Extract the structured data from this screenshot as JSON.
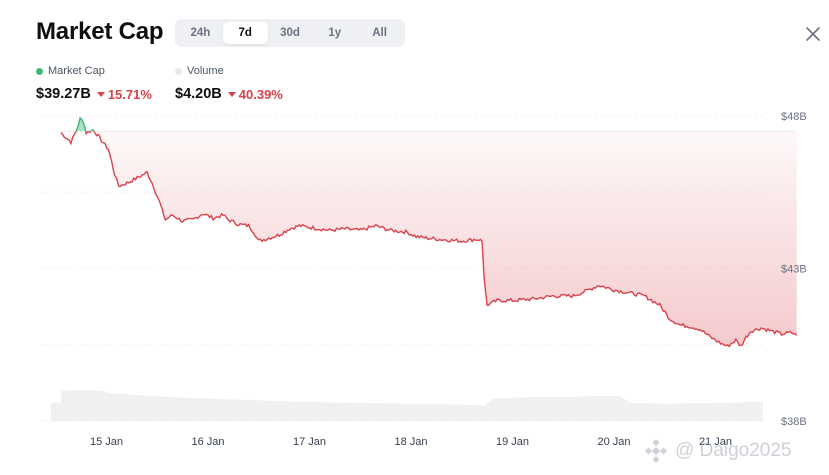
{
  "header": {
    "title": "Market Cap",
    "tabs": [
      {
        "label": "24h",
        "active": false
      },
      {
        "label": "7d",
        "active": true
      },
      {
        "label": "30d",
        "active": false
      },
      {
        "label": "1y",
        "active": false
      },
      {
        "label": "All",
        "active": false
      }
    ],
    "close_icon": "close-icon"
  },
  "legend": {
    "market_cap": {
      "label": "Market Cap",
      "value": "$39.27B",
      "change": "15.71%",
      "direction": "down",
      "color": "#3fb67a"
    },
    "volume": {
      "label": "Volume",
      "value": "$4.20B",
      "change": "40.39%",
      "direction": "down",
      "color": "#e5e7eb"
    }
  },
  "colors": {
    "down": "#d9414b",
    "up": "#3fb67a",
    "volume_bars": "#ebedf0"
  },
  "watermark": {
    "text": "@ Daigo2025"
  },
  "chart_data": {
    "type": "line",
    "y_unit": "B",
    "ylim": [
      38,
      48
    ],
    "y_ticks": [
      "$48B",
      "$43B",
      "$38B"
    ],
    "x_ticks": [
      "15 Jan",
      "16 Jan",
      "17 Jan",
      "18 Jan",
      "19 Jan",
      "20 Jan",
      "21 Jan"
    ],
    "grid": true,
    "baseline": 47.5,
    "series": [
      {
        "values": [
          [
            14.55,
            47.45
          ],
          [
            14.65,
            47.15
          ],
          [
            14.7,
            47.5
          ],
          [
            14.74,
            47.9
          ],
          [
            14.77,
            47.85
          ],
          [
            14.8,
            47.45
          ],
          [
            14.87,
            47.55
          ],
          [
            14.95,
            47.2
          ],
          [
            15.02,
            46.9
          ],
          [
            15.08,
            46.1
          ],
          [
            15.12,
            45.7
          ],
          [
            15.2,
            45.8
          ],
          [
            15.32,
            46.0
          ],
          [
            15.4,
            46.15
          ],
          [
            15.45,
            45.8
          ],
          [
            15.52,
            45.2
          ],
          [
            15.58,
            44.6
          ],
          [
            15.65,
            44.75
          ],
          [
            15.75,
            44.55
          ],
          [
            15.85,
            44.6
          ],
          [
            15.95,
            44.8
          ],
          [
            16.05,
            44.65
          ],
          [
            16.15,
            44.75
          ],
          [
            16.2,
            44.6
          ],
          [
            16.3,
            44.45
          ],
          [
            16.4,
            44.4
          ],
          [
            16.45,
            44.2
          ],
          [
            16.5,
            43.9
          ],
          [
            16.6,
            44.0
          ],
          [
            16.7,
            44.1
          ],
          [
            16.8,
            44.3
          ],
          [
            16.9,
            44.4
          ],
          [
            17.0,
            44.35
          ],
          [
            17.1,
            44.3
          ],
          [
            17.2,
            44.25
          ],
          [
            17.35,
            44.3
          ],
          [
            17.5,
            44.25
          ],
          [
            17.65,
            44.4
          ],
          [
            17.8,
            44.25
          ],
          [
            17.95,
            44.2
          ],
          [
            18.05,
            44.05
          ],
          [
            18.15,
            44.0
          ],
          [
            18.3,
            43.95
          ],
          [
            18.5,
            43.9
          ],
          [
            18.62,
            43.95
          ],
          [
            18.67,
            43.95
          ],
          [
            18.7,
            43.9
          ],
          [
            18.72,
            42.7
          ],
          [
            18.75,
            41.8
          ],
          [
            18.85,
            41.95
          ],
          [
            19.0,
            41.95
          ],
          [
            19.2,
            42.0
          ],
          [
            19.4,
            42.1
          ],
          [
            19.6,
            42.1
          ],
          [
            19.75,
            42.3
          ],
          [
            19.85,
            42.45
          ],
          [
            20.0,
            42.3
          ],
          [
            20.15,
            42.2
          ],
          [
            20.3,
            42.1
          ],
          [
            20.45,
            41.8
          ],
          [
            20.55,
            41.35
          ],
          [
            20.65,
            41.15
          ],
          [
            20.75,
            41.1
          ],
          [
            20.85,
            41.0
          ],
          [
            20.95,
            40.75
          ],
          [
            21.05,
            40.55
          ],
          [
            21.12,
            40.45
          ],
          [
            21.2,
            40.65
          ],
          [
            21.25,
            40.45
          ],
          [
            21.3,
            40.75
          ],
          [
            21.35,
            40.95
          ],
          [
            21.45,
            41.05
          ],
          [
            21.55,
            40.95
          ],
          [
            21.65,
            40.85
          ],
          [
            21.75,
            40.9
          ],
          [
            21.8,
            40.8
          ]
        ]
      },
      {
        "name": "Volume",
        "values": [
          [
            14.55,
            1.75
          ],
          [
            14.7,
            1.8
          ],
          [
            14.85,
            1.8
          ],
          [
            14.95,
            1.75
          ],
          [
            15.05,
            1.6
          ],
          [
            15.3,
            1.5
          ],
          [
            15.6,
            1.4
          ],
          [
            16.0,
            1.3
          ],
          [
            16.5,
            1.2
          ],
          [
            17.0,
            1.1
          ],
          [
            17.5,
            1.05
          ],
          [
            18.0,
            1.0
          ],
          [
            18.5,
            0.95
          ],
          [
            18.72,
            0.9
          ],
          [
            18.8,
            1.3
          ],
          [
            19.2,
            1.4
          ],
          [
            19.6,
            1.4
          ],
          [
            19.75,
            1.45
          ],
          [
            20.05,
            1.45
          ],
          [
            20.15,
            1.05
          ],
          [
            20.5,
            1.0
          ],
          [
            21.0,
            1.05
          ],
          [
            21.4,
            1.1
          ],
          [
            21.8,
            1.05
          ]
        ]
      }
    ]
  }
}
